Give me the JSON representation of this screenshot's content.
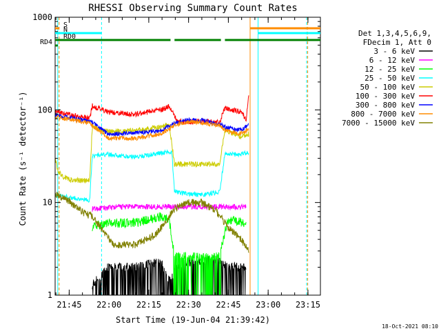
{
  "chart_data": {
    "type": "line",
    "title": "RHESSI Observing Summary Count Rates",
    "xlabel": "Start Time (19-Jun-04 21:39:42)",
    "ylabel": "Count Rate (s⁻¹ detector⁻¹)",
    "yscale": "log",
    "ylim": [
      1,
      1000
    ],
    "xlim_minutes": [
      0,
      100
    ],
    "x_tick_labels": [
      "21:45",
      "22:00",
      "22:15",
      "22:30",
      "22:45",
      "23:00",
      "23:15"
    ],
    "x_tick_minutes": [
      5.3,
      20.3,
      35.3,
      50.3,
      65.3,
      80.3,
      95.3
    ],
    "y_tick_labels": [
      "1",
      "10",
      "100",
      "1000"
    ],
    "y_tick_values": [
      1,
      10,
      100,
      1000
    ],
    "legend_header": [
      "Det 1,3,4,5,6,9,",
      "FDecim 1, Att 0"
    ],
    "legend_placement": "right",
    "timestamp": "18-Oct-2021 08:10",
    "flags": [
      {
        "label": "S",
        "color": "#ff8c00",
        "segments": [
          [
            0.0,
            1.5
          ],
          [
            73.5,
            100
          ]
        ]
      },
      {
        "label": "N",
        "color": "#00ffff",
        "segments": [
          [
            0.0,
            17.5
          ],
          [
            76.5,
            100
          ]
        ]
      },
      {
        "label": "RD0",
        "color": "#008000",
        "segments": [
          [
            0.0,
            43.5
          ],
          [
            45.0,
            62.5
          ],
          [
            64.0,
            100
          ]
        ]
      },
      {
        "label": "RD4",
        "color": "#008000",
        "segments": [
          [
            0.0,
            1.0
          ]
        ]
      }
    ],
    "vertical_markers": [
      {
        "x": 1.0,
        "color": "#00ffff",
        "style": "solid"
      },
      {
        "x": 1.5,
        "color": "#ff8c00",
        "style": "dashed"
      },
      {
        "x": 17.5,
        "color": "#00ffff",
        "style": "dashed"
      },
      {
        "x": 73.5,
        "color": "#ff8c00",
        "style": "solid"
      },
      {
        "x": 76.5,
        "color": "#00ffff",
        "style": "solid"
      },
      {
        "x": 94.8,
        "color": "#00ffff",
        "style": "dashed"
      },
      {
        "x": 95.2,
        "color": "#ff8c00",
        "style": "dashed"
      }
    ],
    "series": [
      {
        "name": "3 - 6 keV",
        "color": "#000000",
        "points": [
          [
            14,
            1.3
          ],
          [
            20,
            2.0
          ],
          [
            30,
            2.0
          ],
          [
            40,
            2.3
          ],
          [
            43,
            1.4
          ],
          [
            47,
            2.2
          ],
          [
            60,
            2.5
          ],
          [
            65,
            2.0
          ],
          [
            72,
            2.0
          ]
        ]
      },
      {
        "name": "6 - 12 keV",
        "color": "#ff00ff",
        "points": [
          [
            14,
            8.5
          ],
          [
            25,
            9.0
          ],
          [
            40,
            9.0
          ],
          [
            50,
            9.0
          ],
          [
            60,
            9.0
          ],
          [
            65,
            9.0
          ],
          [
            72,
            9.0
          ]
        ]
      },
      {
        "name": "12 - 25 keV",
        "color": "#00ff00",
        "points": [
          [
            14,
            5.5
          ],
          [
            20,
            6.0
          ],
          [
            30,
            6.0
          ],
          [
            40,
            7.0
          ],
          [
            43,
            6.5
          ],
          [
            45,
            2.6
          ],
          [
            55,
            2.6
          ],
          [
            62,
            2.6
          ],
          [
            65,
            6.5
          ],
          [
            72,
            6.0
          ]
        ]
      },
      {
        "name": "25 - 50 keV",
        "color": "#00ffff",
        "points": [
          [
            0,
            12.0
          ],
          [
            13,
            10.5
          ],
          [
            14,
            32
          ],
          [
            20,
            33
          ],
          [
            30,
            31
          ],
          [
            42,
            35
          ],
          [
            44,
            35
          ],
          [
            45,
            13.0
          ],
          [
            55,
            12.0
          ],
          [
            62,
            13.0
          ],
          [
            64,
            33
          ],
          [
            70,
            33
          ],
          [
            73,
            35
          ]
        ]
      },
      {
        "name": "50 - 100 keV",
        "color": "#cccc00",
        "points": [
          [
            0,
            30
          ],
          [
            1,
            22
          ],
          [
            3,
            19
          ],
          [
            6,
            17.5
          ],
          [
            13,
            17
          ],
          [
            14,
            65
          ],
          [
            20,
            58
          ],
          [
            30,
            60
          ],
          [
            40,
            65
          ],
          [
            43,
            70
          ],
          [
            45,
            26
          ],
          [
            55,
            26
          ],
          [
            62,
            26
          ],
          [
            64,
            60
          ],
          [
            70,
            52
          ],
          [
            73,
            55
          ]
        ]
      },
      {
        "name": "100 - 300 keV",
        "color": "#ff0000",
        "points": [
          [
            0,
            95
          ],
          [
            13,
            80
          ],
          [
            14,
            110
          ],
          [
            20,
            95
          ],
          [
            30,
            90
          ],
          [
            40,
            100
          ],
          [
            43,
            110
          ],
          [
            46,
            75
          ],
          [
            55,
            75
          ],
          [
            62,
            73
          ],
          [
            64,
            105
          ],
          [
            70,
            95
          ],
          [
            72,
            80
          ],
          [
            73,
            140
          ]
        ]
      },
      {
        "name": "300 - 800 keV",
        "color": "#0000ff",
        "points": [
          [
            0,
            88
          ],
          [
            13,
            75
          ],
          [
            14,
            74
          ],
          [
            20,
            55
          ],
          [
            30,
            56
          ],
          [
            40,
            60
          ],
          [
            45,
            72
          ],
          [
            50,
            78
          ],
          [
            55,
            77
          ],
          [
            62,
            70
          ],
          [
            64,
            65
          ],
          [
            70,
            60
          ],
          [
            73,
            70
          ]
        ]
      },
      {
        "name": "800 - 7000 keV",
        "color": "#ff8c00",
        "points": [
          [
            0,
            85
          ],
          [
            13,
            72
          ],
          [
            14,
            68
          ],
          [
            20,
            50
          ],
          [
            30,
            49
          ],
          [
            40,
            55
          ],
          [
            45,
            68
          ],
          [
            50,
            74
          ],
          [
            55,
            73
          ],
          [
            62,
            67
          ],
          [
            64,
            60
          ],
          [
            70,
            55
          ],
          [
            73,
            62
          ]
        ]
      },
      {
        "name": "7000 - 15000 keV",
        "color": "#808000",
        "points": [
          [
            0,
            12.5
          ],
          [
            5,
            10.5
          ],
          [
            10,
            8.0
          ],
          [
            14,
            7.0
          ],
          [
            18,
            5.0
          ],
          [
            22,
            3.5
          ],
          [
            30,
            3.5
          ],
          [
            38,
            4.5
          ],
          [
            45,
            8.5
          ],
          [
            50,
            10.0
          ],
          [
            55,
            10.0
          ],
          [
            60,
            8.5
          ],
          [
            65,
            5.5
          ],
          [
            70,
            4.0
          ],
          [
            73,
            3.0
          ]
        ]
      }
    ]
  }
}
